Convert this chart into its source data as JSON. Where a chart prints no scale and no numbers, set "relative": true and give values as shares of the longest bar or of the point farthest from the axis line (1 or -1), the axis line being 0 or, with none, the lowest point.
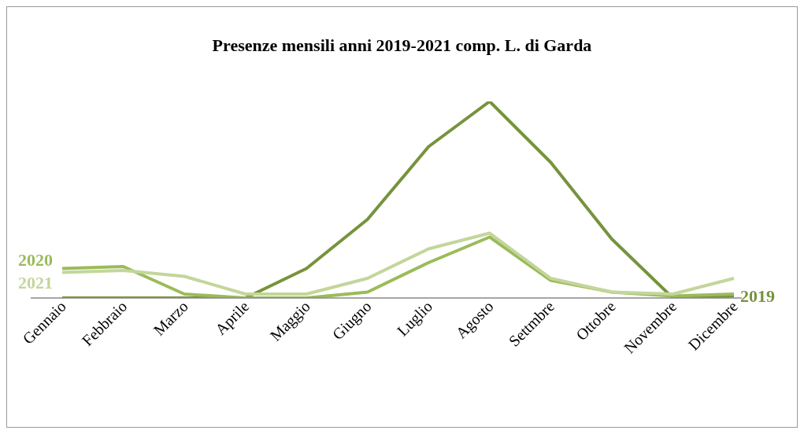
{
  "chart_data": {
    "type": "line",
    "title": "Presenze mensili anni 2019-2021 comp. L. di Garda",
    "relative": true,
    "categories": [
      "Gennaio",
      "Febbraio",
      "Marzo",
      "Aprile",
      "Maggio",
      "Giugno",
      "Luglio",
      "Agosto",
      "Settmbre",
      "Ottobre",
      "Novembre",
      "Dicembre"
    ],
    "series": [
      {
        "name": "2019",
        "color": "#77933c",
        "values": [
          0,
          0,
          0,
          0,
          0.15,
          0.4,
          0.77,
          1,
          0.69,
          0.3,
          0,
          0.01
        ]
      },
      {
        "name": "2020",
        "color": "#9bbb59",
        "values": [
          0.15,
          0.16,
          0.02,
          0,
          0,
          0.03,
          0.18,
          0.31,
          0.09,
          0.03,
          0.01,
          0.02
        ]
      },
      {
        "name": "2021",
        "color": "#c3d69b",
        "values": [
          0.13,
          0.14,
          0.11,
          0.02,
          0.02,
          0.1,
          0.25,
          0.33,
          0.1,
          0.03,
          0.02,
          0.1
        ]
      }
    ],
    "grid": false,
    "legend": false,
    "marker": "none",
    "line_style": "solid"
  }
}
